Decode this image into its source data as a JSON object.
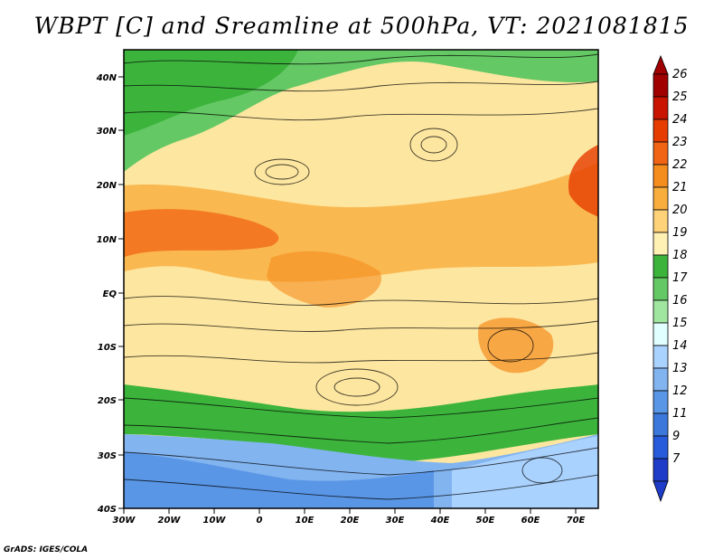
{
  "title": "WBPT [C] and Sreamline at 500hPa, VT: 2021081815",
  "credit": "GrADS: IGES/COLA",
  "map": {
    "lat_labels": [
      "40N",
      "30N",
      "20N",
      "10N",
      "EQ",
      "10S",
      "20S",
      "30S",
      "40S"
    ],
    "lon_labels": [
      "30W",
      "20W",
      "10W",
      "0",
      "10E",
      "20E",
      "30E",
      "40E",
      "50E",
      "60E",
      "70E"
    ],
    "lon_range": [
      -30,
      75
    ],
    "lat_range": [
      -40,
      45
    ]
  },
  "colorbar": {
    "levels": [
      "26",
      "25",
      "24",
      "23",
      "22",
      "21",
      "20",
      "19",
      "18",
      "17",
      "16",
      "15",
      "14",
      "13",
      "12",
      "11",
      "9",
      "7"
    ],
    "colors": [
      "#a00000",
      "#c81400",
      "#e63c00",
      "#f06414",
      "#f58c1e",
      "#f9ad3c",
      "#fdd278",
      "#fff0b4",
      "#3cb43c",
      "#64c864",
      "#a0e6a0",
      "#e1ffff",
      "#aad2ff",
      "#82b4f0",
      "#5a96e6",
      "#3c78dc",
      "#285adc",
      "#1e3cc8"
    ]
  }
}
